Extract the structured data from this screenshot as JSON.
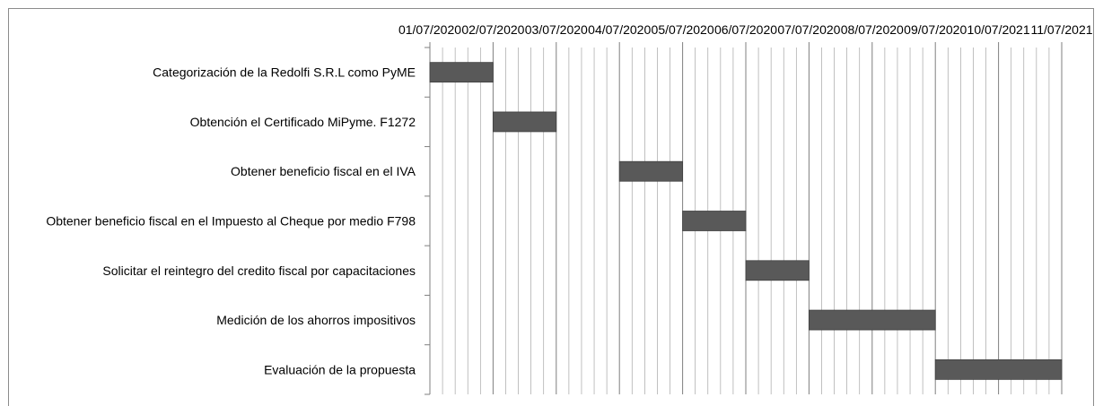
{
  "chart_data": {
    "type": "bar",
    "subtype": "gantt",
    "title": "",
    "xlabel": "",
    "ylabel": "",
    "x_axis_position": "top",
    "grid": true,
    "date_ticks": [
      "01/07/2020",
      "02/07/2020",
      "03/07/2020",
      "04/07/2020",
      "05/07/2020",
      "06/07/2020",
      "07/07/2020",
      "08/07/2020",
      "09/07/2020",
      "10/07/2021",
      "11/07/2021"
    ],
    "tasks": [
      {
        "label": "Categorización de la Redolfi S.R.L como PyME",
        "start": "01/07/2020",
        "end": "02/07/2020"
      },
      {
        "label": "Obtención el Certificado MiPyme. F1272",
        "start": "02/07/2020",
        "end": "03/07/2020"
      },
      {
        "label": "Obtener beneficio fiscal en el IVA",
        "start": "04/07/2020",
        "end": "05/07/2020"
      },
      {
        "label": "Obtener beneficio fiscal en el Impuesto al Cheque por medio F798",
        "start": "05/07/2020",
        "end": "06/07/2020"
      },
      {
        "label": "Solicitar el reintegro del credito fiscal por capacitaciones",
        "start": "06/07/2020",
        "end": "07/07/2020"
      },
      {
        "label": "Medición de los ahorros impositivos",
        "start": "07/07/2020",
        "end": "09/07/2020"
      },
      {
        "label": "Evaluación de la propuesta",
        "start": "09/07/2020",
        "end": "11/07/2021"
      }
    ],
    "colors": {
      "bar": "#595959",
      "grid": "#a6a6a6",
      "frame": "#8c8c8c"
    }
  }
}
